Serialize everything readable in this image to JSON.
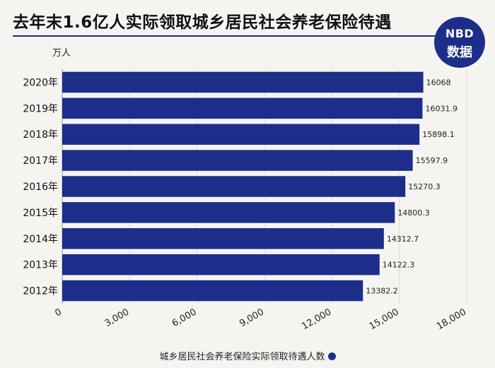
{
  "header": {
    "title": "去年末1.6亿人实际领取城乡居民社会养老保险待遇",
    "logo_line1": "NBD",
    "logo_line2": "数据"
  },
  "chart_data": {
    "type": "bar",
    "orientation": "horizontal",
    "categories": [
      "2020年",
      "2019年",
      "2018年",
      "2017年",
      "2016年",
      "2015年",
      "2014年",
      "2013年",
      "2012年"
    ],
    "series": [
      {
        "name": "城乡居民社会养老保险实际领取待遇人数",
        "values": [
          16068,
          16031.9,
          15898.1,
          15597.9,
          15270.3,
          14800.3,
          14312.7,
          14122.3,
          13382.2
        ],
        "labels": [
          "16068",
          "16031.9",
          "15898.1",
          "15597.9",
          "15270.3",
          "14800.3",
          "14312.7",
          "14122.3",
          "13382.2"
        ]
      }
    ],
    "unit": "万人",
    "xlim": [
      0,
      18000
    ],
    "xticks": [
      0,
      3000,
      6000,
      9000,
      12000,
      15000,
      18000
    ],
    "xtick_labels": [
      "0",
      "3,000",
      "6,000",
      "9,000",
      "12,000",
      "15,000",
      "18,000"
    ],
    "grid": true,
    "legend": "bottom-center",
    "color": "#1c2e8a"
  }
}
